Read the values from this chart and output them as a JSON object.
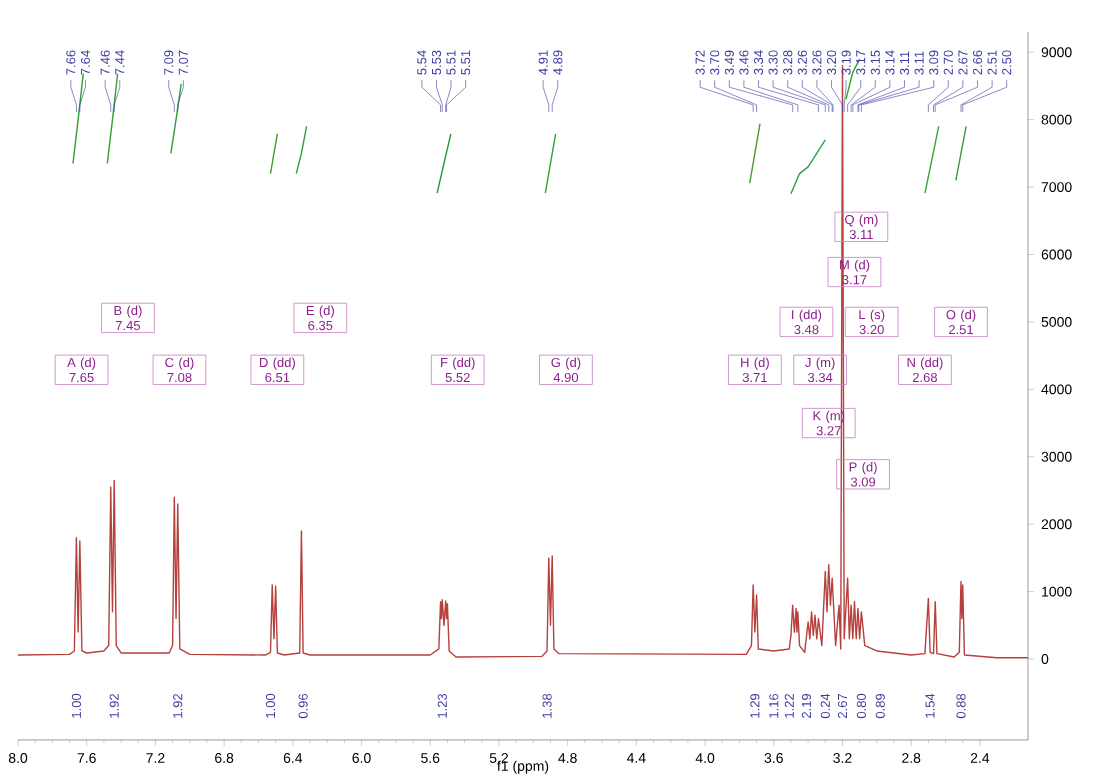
{
  "chart_data": {
    "type": "line",
    "xlabel": "f1 (ppm)",
    "xlim": [
      8.0,
      2.12
    ],
    "ylim": [
      -1200,
      9300
    ],
    "xticks": [
      {
        "value": 8,
        "label": "8.0"
      },
      {
        "value": 7.6,
        "label": "7.6"
      },
      {
        "value": 7.2,
        "label": "7.2"
      },
      {
        "value": 6.8,
        "label": "6.8"
      },
      {
        "value": 6.4,
        "label": "6.4"
      },
      {
        "value": 6,
        "label": "6.0"
      },
      {
        "value": 5.6,
        "label": "5.6"
      },
      {
        "value": 5.2,
        "label": "5.2"
      },
      {
        "value": 4.8,
        "label": "4.8"
      },
      {
        "value": 4.4,
        "label": "4.4"
      },
      {
        "value": 4,
        "label": "4.0"
      },
      {
        "value": 3.6,
        "label": "3.6"
      },
      {
        "value": 3.2,
        "label": "3.2"
      },
      {
        "value": 2.8,
        "label": "2.8"
      },
      {
        "value": 2.4,
        "label": "2.4"
      }
    ],
    "yticks": [
      0,
      1000,
      2000,
      3000,
      4000,
      5000,
      6000,
      7000,
      8000,
      9000
    ],
    "series": [
      {
        "type": "line",
        "color": "#b5403c",
        "x": [
          8.0,
          7.7,
          7.672,
          7.66,
          7.65,
          7.64,
          7.628,
          7.6,
          7.5,
          7.472,
          7.46,
          7.45,
          7.44,
          7.428,
          7.4,
          7.12,
          7.1,
          7.09,
          7.08,
          7.07,
          7.058,
          7.0,
          6.56,
          6.53,
          6.52,
          6.51,
          6.5,
          6.49,
          6.45,
          6.36,
          6.35,
          6.34,
          6.3,
          5.6,
          5.55,
          5.54,
          5.535,
          5.53,
          5.52,
          5.51,
          5.505,
          5.5,
          5.49,
          5.45,
          4.95,
          4.92,
          4.91,
          4.9,
          4.89,
          4.88,
          4.85,
          3.76,
          3.73,
          3.72,
          3.71,
          3.7,
          3.69,
          3.6,
          3.51,
          3.5,
          3.49,
          3.48,
          3.47,
          3.465,
          3.46,
          3.45,
          3.42,
          3.4,
          3.39,
          3.38,
          3.37,
          3.36,
          3.35,
          3.34,
          3.32,
          3.3,
          3.29,
          3.28,
          3.27,
          3.26,
          3.24,
          3.22,
          3.21,
          3.2,
          3.19,
          3.17,
          3.16,
          3.15,
          3.14,
          3.13,
          3.12,
          3.11,
          3.1,
          3.09,
          3.07,
          3.0,
          2.8,
          2.72,
          2.7,
          2.69,
          2.67,
          2.66,
          2.65,
          2.55,
          2.52,
          2.51,
          2.505,
          2.5,
          2.49,
          2.3,
          2.12
        ],
        "values": [
          60,
          70,
          120,
          1800,
          400,
          1750,
          120,
          90,
          120,
          200,
          2550,
          700,
          2650,
          200,
          90,
          90,
          200,
          2400,
          600,
          2300,
          150,
          70,
          60,
          100,
          1100,
          300,
          1080,
          90,
          60,
          90,
          1900,
          90,
          60,
          60,
          150,
          850,
          600,
          880,
          500,
          860,
          600,
          820,
          120,
          30,
          40,
          120,
          1500,
          500,
          1530,
          150,
          80,
          70,
          200,
          1100,
          400,
          950,
          150,
          120,
          150,
          350,
          800,
          400,
          750,
          400,
          700,
          200,
          100,
          550,
          300,
          700,
          350,
          650,
          300,
          600,
          200,
          1300,
          700,
          1400,
          800,
          1200,
          200,
          800,
          150,
          8800,
          300,
          1200,
          300,
          800,
          300,
          850,
          300,
          750,
          300,
          700,
          200,
          120,
          60,
          80,
          900,
          100,
          80,
          850,
          80,
          30,
          100,
          1150,
          600,
          1100,
          60,
          20,
          20
        ]
      },
      {
        "type": "line",
        "color": "#2e9e2e",
        "x": [
          7.68,
          7.65,
          7.62
        ],
        "values": [
          7350,
          8000,
          8680
        ]
      },
      {
        "type": "line",
        "color": "#369e2e",
        "x": [
          7.48,
          7.45,
          7.42
        ],
        "values": [
          7350,
          8000,
          8680
        ]
      },
      {
        "type": "line",
        "color": "#2e9e36",
        "x": [
          7.11,
          7.08,
          7.05
        ],
        "values": [
          7500,
          8000,
          8530
        ]
      },
      {
        "type": "line",
        "color": "#3e9e2e",
        "x": [
          6.53,
          6.51,
          6.49
        ],
        "values": [
          7200,
          7500,
          7790
        ]
      },
      {
        "type": "line",
        "color": "#2e9e3e",
        "x": [
          6.38,
          6.35,
          6.32
        ],
        "values": [
          7200,
          7500,
          7900
        ]
      },
      {
        "type": "line",
        "color": "#26962e",
        "x": [
          5.56,
          5.52,
          5.48
        ],
        "values": [
          6910,
          7350,
          7790
        ]
      },
      {
        "type": "line",
        "color": "#2ea62e",
        "x": [
          4.93,
          4.9,
          4.87
        ],
        "values": [
          6910,
          7350,
          7790
        ]
      },
      {
        "type": "line",
        "color": "#469e2e",
        "x": [
          3.74,
          3.71,
          3.68
        ],
        "values": [
          7060,
          7500,
          7940
        ]
      },
      {
        "type": "line",
        "color": "#2e9e46",
        "x": [
          3.5,
          3.45,
          3.4,
          3.35,
          3.3
        ],
        "values": [
          6900,
          7200,
          7300,
          7500,
          7700
        ]
      },
      {
        "type": "line",
        "color": "#26a626",
        "x": [
          3.18,
          3.14,
          3.1
        ],
        "values": [
          8300,
          8700,
          8900
        ]
      },
      {
        "type": "line",
        "color": "#36a636",
        "x": [
          2.72,
          2.68,
          2.64
        ],
        "values": [
          6910,
          7400,
          7900
        ]
      },
      {
        "type": "line",
        "color": "#3e963e",
        "x": [
          2.54,
          2.51,
          2.48
        ],
        "values": [
          7100,
          7500,
          7900
        ]
      }
    ],
    "annotations": [
      "7.66",
      "7.64",
      "7.46",
      "7.44",
      "7.09",
      "7.07",
      "5.54",
      "5.53",
      "5.51",
      "5.51",
      "4.91",
      "4.89",
      "3.72",
      "3.70",
      "3.49",
      "3.46",
      "3.34",
      "3.30",
      "3.28",
      "3.26",
      "3.26",
      "3.20",
      "3.19",
      "3.17",
      "3.15",
      "3.14",
      "3.11",
      "3.11",
      "3.09",
      "2.70",
      "2.67",
      "2.66",
      "2.51",
      "2.50",
      "A (d) 7.65",
      "B (d) 7.45",
      "C (d) 7.08",
      "D (dd) 6.51",
      "E (d) 6.35",
      "F (dd) 5.52",
      "G (d) 4.90",
      "H (d) 3.71",
      "I (dd) 3.48",
      "J (m) 3.34",
      "K (m) 3.27",
      "L (s) 3.20",
      "M (d) 3.17",
      "N (dd) 2.68",
      "O (d) 2.51",
      "P (d) 3.09",
      "Q (m) 3.11",
      "1.00",
      "1.92",
      "1.92",
      "1.00",
      "0.96",
      "1.23",
      "1.38",
      "1.29",
      "1.16",
      "1.22",
      "2.19",
      "0.24",
      "2.67",
      "0.80",
      "0.89",
      "1.54",
      "0.88"
    ]
  }
}
